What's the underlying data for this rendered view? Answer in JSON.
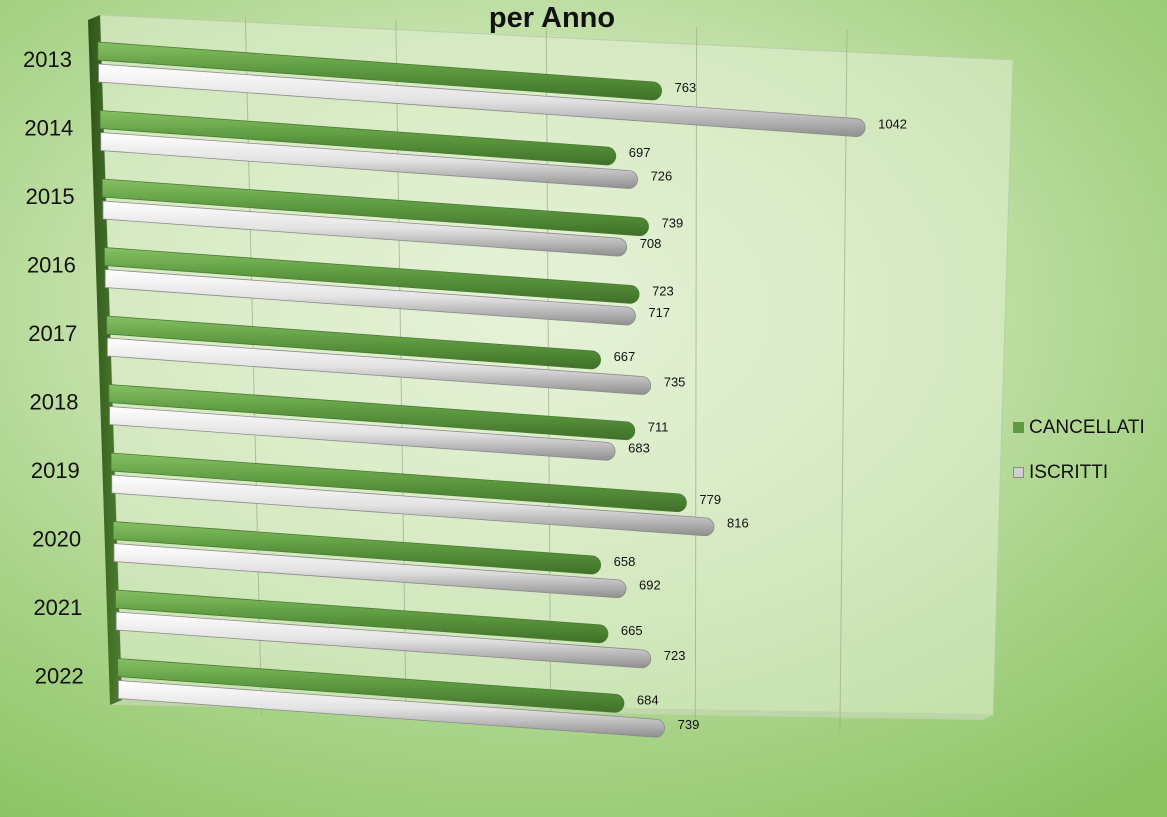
{
  "chart_data": {
    "type": "bar",
    "orientation": "horizontal",
    "style": "3d-cylinder",
    "title": "per Anno",
    "categories": [
      "2013",
      "2014",
      "2015",
      "2016",
      "2017",
      "2018",
      "2019",
      "2020",
      "2021",
      "2022"
    ],
    "series": [
      {
        "name": "CANCELLATI",
        "values": [
          763,
          697,
          739,
          723,
          667,
          711,
          779,
          658,
          665,
          684
        ]
      },
      {
        "name": "ISCRITTI",
        "values": [
          1042,
          726,
          708,
          717,
          735,
          683,
          816,
          692,
          723,
          739
        ]
      }
    ],
    "xlim": [
      0,
      1200
    ],
    "grid": true,
    "legend_position": "right"
  },
  "colors": {
    "cancellati": "#5e9a41",
    "iscritti": "#d9d9d9",
    "side_wall": "#3f6a22"
  }
}
